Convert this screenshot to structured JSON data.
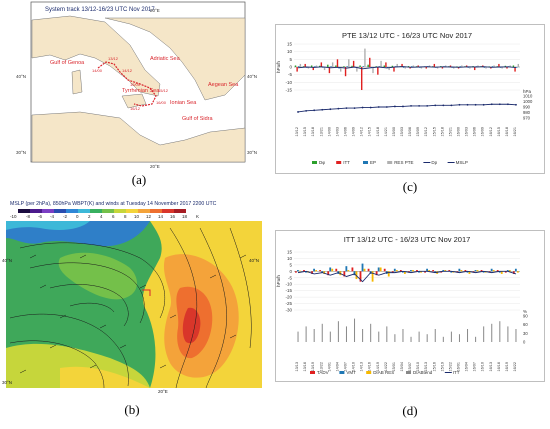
{
  "captions": {
    "a": "(a)",
    "b": "(b)",
    "c": "(c)",
    "d": "(d)"
  },
  "map_a": {
    "title": "System track 13/12-16/23 UTC Nov 2017",
    "lon_label": "20°E",
    "lat_top": "40°N",
    "lat_bottom": "30°N",
    "places": [
      "Gulf of Genoa",
      "Adriatic Sea",
      "Tyrrhenian Sea",
      "Ionian Sea",
      "Aegean Sea",
      "Gulf of Sidra"
    ],
    "track_times": [
      "13/12",
      "14/00",
      "14/12",
      "15/00",
      "15/12",
      "16/00",
      "16/12"
    ],
    "colors": {
      "sea": "#ffffff",
      "land": "#f5e6c8",
      "track": "#d9262d",
      "label": "#d9262d"
    }
  },
  "map_b": {
    "title": "MSLP (per 2hPa), 850hPa WBPT(K) and winds at Tuesday 14 November 2017 2200 UTC",
    "scale": [
      "-10",
      "-8",
      "-6",
      "-4",
      "-2",
      "0",
      "2",
      "4",
      "6",
      "8",
      "10",
      "12",
      "14",
      "16",
      "18",
      "K"
    ],
    "lat_top": "40°N",
    "lat_bottom": "30°N",
    "lon_label": "20°E"
  },
  "chart_data": [
    {
      "type": "bar",
      "title": "PTE 13/12 UTC - 16/23 UTC Nov 2017",
      "ylabel": "hPa/h",
      "ylabel2": "hPa",
      "ylim": [
        -15,
        15
      ],
      "yticks": [
        "15",
        "10",
        "5",
        "0",
        "-5",
        "-10",
        "-15"
      ],
      "ylim2": [
        970,
        1010
      ],
      "yticks2": [
        "1010",
        "1000",
        "990",
        "980",
        "970"
      ],
      "categories": [
        "13/12",
        "13/15",
        "13/18",
        "13/21",
        "14/00",
        "14/03",
        "14/06",
        "14/09",
        "14/12",
        "14/15",
        "14/18",
        "14/21",
        "15/00",
        "15/03",
        "15/06",
        "15/09",
        "15/12",
        "15/15",
        "15/18",
        "15/21",
        "16/00",
        "16/03",
        "16/06",
        "16/09",
        "16/12",
        "16/15",
        "16/18",
        "16/21"
      ],
      "series": [
        {
          "name": "Dφ",
          "color": "#2ca02c",
          "values": [
            1,
            0.5,
            1,
            0.8,
            1.5,
            1,
            0.5,
            0.8,
            1,
            1.5,
            0.5,
            1,
            0.8,
            0.5,
            0.6,
            0.5,
            0.4,
            0.5,
            0.6,
            0.5,
            0.4,
            0.5,
            0.6,
            0.5,
            0.4,
            0.5,
            0.8,
            1
          ]
        },
        {
          "name": "ITT",
          "color": "#e02020",
          "values": [
            -3,
            2,
            -2,
            3,
            -4,
            5,
            -6,
            4,
            -15,
            6,
            -5,
            3,
            -3,
            2,
            -1,
            1,
            -1,
            2,
            -1,
            1,
            -1,
            1,
            -2,
            1,
            -1,
            2,
            -1,
            -3
          ]
        },
        {
          "name": "EP",
          "color": "#1f77b4",
          "values": [
            0.5,
            -0.5,
            0.5,
            -0.5,
            0.5,
            -1,
            0.5,
            -0.5,
            0.5,
            -0.5,
            0.5,
            -0.5,
            0.5,
            -0.5,
            0.5,
            -0.5,
            0.5,
            -0.5,
            0.5,
            -0.5,
            0.5,
            -0.5,
            0.5,
            -0.5,
            0.5,
            -0.5,
            0.5,
            -0.5
          ]
        },
        {
          "name": "RES PTE",
          "color": "#b0b0b0",
          "values": [
            2,
            -1,
            1,
            -2,
            3,
            -3,
            5,
            -3,
            12,
            -4,
            4,
            -2,
            2,
            -1,
            1,
            -1,
            1,
            -1,
            1,
            -1,
            1,
            -1,
            1,
            -1,
            1,
            -1,
            1,
            2
          ]
        }
      ],
      "lines": [
        {
          "name": "Dp",
          "color": "#1a2a6c",
          "values": [
            -0.5,
            0,
            -0.3,
            0.1,
            -0.5,
            -0.2,
            -0.8,
            0,
            -1.2,
            -0.5,
            0,
            -0.6,
            0,
            0.3,
            -0.2,
            0,
            0.2,
            -0.1,
            0.1,
            0,
            -0.2,
            0.1,
            0,
            0.2,
            -0.2,
            0,
            0.1,
            -0.4
          ]
        },
        {
          "name": "MSLP",
          "color": "#1a2a6c",
          "values": [
            981,
            983,
            984,
            985,
            986,
            987,
            988,
            988,
            989,
            989,
            990,
            990,
            991,
            991,
            992,
            992,
            992,
            993,
            993,
            993,
            994,
            994,
            994,
            994,
            995,
            995,
            995,
            994
          ]
        }
      ]
    },
    {
      "type": "bar",
      "title": "ITT 13/12 UTC - 16/23 UTC Nov 2017",
      "ylabel": "hPa/h",
      "ylabel2": "%",
      "ylim": [
        -30,
        15
      ],
      "yticks": [
        "15",
        "10",
        "5",
        "0",
        "-5",
        "-10",
        "-15",
        "-20",
        "-25",
        "-30"
      ],
      "ylim2": [
        0,
        100
      ],
      "yticks2": [
        "90",
        "60",
        "30",
        "0"
      ],
      "categories": [
        "13/13",
        "13/16",
        "13/19",
        "13/22",
        "14/01",
        "14/04",
        "14/07",
        "14/10",
        "14/13",
        "14/16",
        "14/19",
        "14/22",
        "15/01",
        "15/04",
        "15/07",
        "15/10",
        "15/13",
        "15/16",
        "15/19",
        "15/22",
        "16/01",
        "16/04",
        "16/07",
        "16/10",
        "16/13",
        "16/16",
        "16/19",
        "16/22"
      ],
      "series": [
        {
          "name": "TADV",
          "color": "#e02020",
          "values": [
            -1,
            1,
            -2,
            1,
            -3,
            2,
            -4,
            3,
            -8,
            2,
            -3,
            2,
            -1,
            1,
            -1,
            1,
            -1,
            1,
            -1,
            1,
            -1,
            1,
            -1,
            1,
            -1,
            1,
            -1,
            -2
          ]
        },
        {
          "name": "VMT",
          "color": "#1f77b4",
          "values": [
            1,
            -1,
            2,
            -1,
            3,
            -2,
            4,
            -3,
            6,
            -2,
            3,
            -2,
            2,
            -1,
            1,
            -1,
            2,
            -1,
            1,
            -1,
            2,
            -1,
            1,
            -1,
            2,
            -1,
            1,
            2
          ]
        },
        {
          "name": "DIAB RES",
          "color": "#f5b800",
          "values": [
            0.5,
            -1,
            1,
            -2,
            2,
            -3,
            1,
            -6,
            2,
            -8,
            3,
            -4,
            1,
            -2,
            1,
            -1,
            1,
            -2,
            1,
            -1,
            1,
            -2,
            1,
            -1,
            1,
            -2,
            1,
            -1
          ]
        },
        {
          "name": "DIABtend",
          "color": "#888888",
          "values": [
            40,
            60,
            50,
            70,
            40,
            80,
            60,
            90,
            50,
            70,
            40,
            60,
            30,
            50,
            20,
            40,
            30,
            50,
            20,
            40,
            30,
            50,
            20,
            60,
            70,
            80,
            60,
            50
          ]
        }
      ],
      "lines": [
        {
          "name": "ITT",
          "color": "#1a2a6c",
          "values": [
            -1,
            0,
            -2,
            -1,
            -3,
            -1,
            -4,
            -2,
            -8,
            -1,
            -3,
            -1,
            -1,
            0,
            -1,
            0,
            0,
            -1,
            0,
            0,
            -1,
            0,
            -1,
            0,
            -1,
            0,
            0,
            -2
          ]
        }
      ]
    }
  ]
}
